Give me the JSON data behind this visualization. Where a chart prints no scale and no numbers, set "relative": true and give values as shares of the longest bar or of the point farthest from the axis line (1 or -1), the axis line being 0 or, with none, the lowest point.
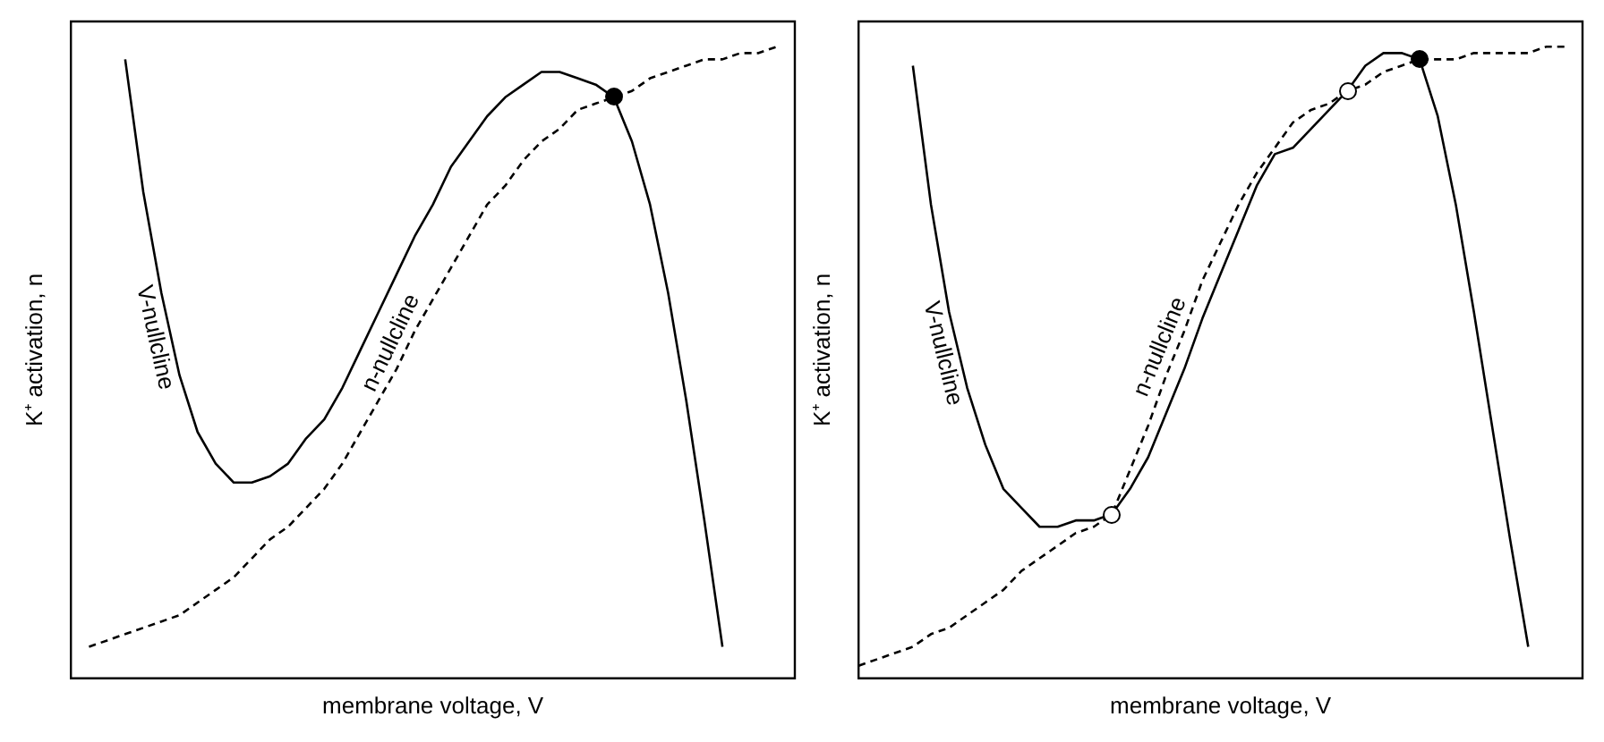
{
  "chart_data": [
    {
      "type": "line",
      "relative": true,
      "xlabel": "membrane voltage, V",
      "ylabel": "K⁺ activation, n",
      "categories": [
        null,
        null,
        null,
        null,
        null,
        null,
        null,
        null,
        null,
        null,
        null,
        null,
        null,
        null,
        null,
        null,
        null,
        null,
        null,
        null,
        null,
        null,
        null,
        null,
        null,
        null,
        null,
        null,
        null,
        null,
        null,
        null,
        null,
        null,
        null,
        null,
        null,
        null,
        null,
        null,
        null
      ],
      "marker": "none",
      "grid": false,
      "legend": false,
      "series": [
        {
          "name": "V-nullcline",
          "color": "#000000",
          "line_style": "solid",
          "values": [
            null,
            null,
            null,
            0.98,
            0.77,
            0.61,
            0.48,
            0.39,
            0.34,
            0.31,
            0.31,
            0.32,
            0.34,
            0.38,
            0.41,
            0.46,
            0.52,
            0.58,
            0.64,
            0.7,
            0.75,
            0.81,
            0.85,
            0.89,
            0.92,
            0.94,
            0.96,
            0.96,
            0.95,
            0.94,
            0.92,
            0.85,
            0.75,
            0.61,
            0.44,
            0.25,
            0.05,
            null,
            null,
            null,
            null
          ]
        },
        {
          "name": "n-nullcline",
          "color": "#000000",
          "line_style": "dashed",
          "values": [
            null,
            0.05,
            0.06,
            0.07,
            0.08,
            0.09,
            0.1,
            0.12,
            0.14,
            0.16,
            0.19,
            0.22,
            0.24,
            0.27,
            0.3,
            0.34,
            0.39,
            0.44,
            0.49,
            0.55,
            0.6,
            0.65,
            0.7,
            0.75,
            0.78,
            0.82,
            0.85,
            0.87,
            0.9,
            0.91,
            0.92,
            0.93,
            0.95,
            0.96,
            0.97,
            0.98,
            0.98,
            0.99,
            0.99,
            1,
            null
          ]
        }
      ]
    },
    {
      "type": "line",
      "relative": true,
      "xlabel": "membrane voltage, V",
      "ylabel": "K⁺ activation, n",
      "categories": [
        null,
        null,
        null,
        null,
        null,
        null,
        null,
        null,
        null,
        null,
        null,
        null,
        null,
        null,
        null,
        null,
        null,
        null,
        null,
        null,
        null,
        null,
        null,
        null,
        null,
        null,
        null,
        null,
        null,
        null,
        null,
        null,
        null,
        null,
        null,
        null,
        null,
        null,
        null,
        null,
        null
      ],
      "marker": "none",
      "grid": false,
      "legend": false,
      "series": [
        {
          "name": "V-nullcline",
          "color": "#000000",
          "line_style": "solid",
          "values": [
            null,
            null,
            null,
            0.97,
            0.75,
            0.58,
            0.46,
            0.37,
            0.3,
            0.27,
            0.24,
            0.24,
            0.25,
            0.25,
            0.26,
            0.3,
            0.35,
            0.42,
            0.49,
            0.57,
            0.64,
            0.71,
            0.78,
            0.83,
            0.84,
            0.87,
            0.9,
            0.93,
            0.97,
            0.99,
            0.99,
            0.98,
            0.89,
            0.75,
            0.58,
            0.4,
            0.22,
            0.05,
            null,
            null,
            null
          ]
        },
        {
          "name": "n-nullcline",
          "color": "#000000",
          "line_style": "dashed",
          "values": [
            0.02,
            0.03,
            0.04,
            0.05,
            0.07,
            0.08,
            0.1,
            0.12,
            0.14,
            0.17,
            0.19,
            0.21,
            0.23,
            0.24,
            0.26,
            0.33,
            0.4,
            0.48,
            0.55,
            0.63,
            0.69,
            0.75,
            0.8,
            0.84,
            0.88,
            0.9,
            0.91,
            0.93,
            0.94,
            0.96,
            0.97,
            0.98,
            0.98,
            0.98,
            0.99,
            0.99,
            0.99,
            0.99,
            1,
            1,
            null
          ]
        }
      ]
    }
  ]
}
